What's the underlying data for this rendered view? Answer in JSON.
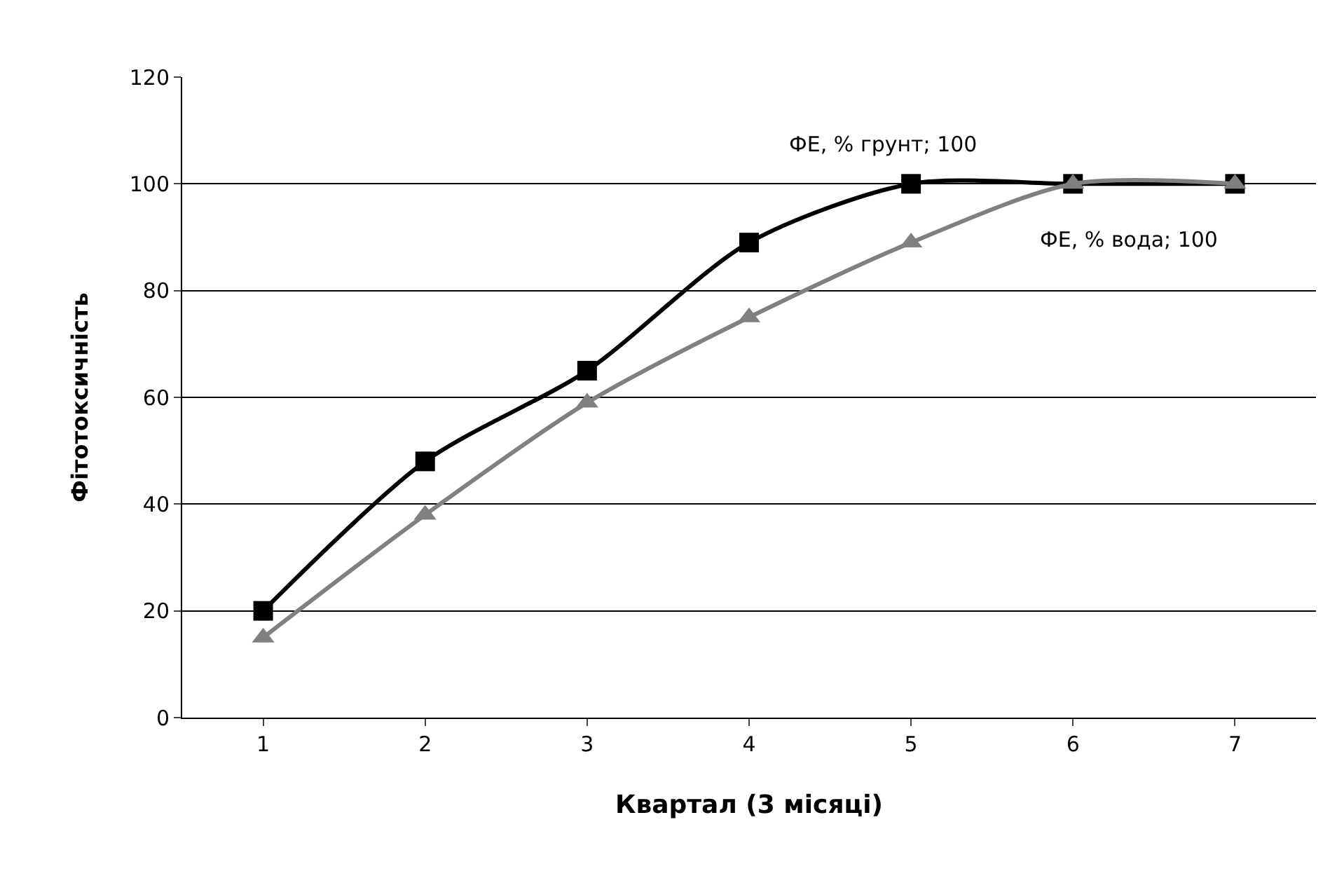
{
  "chart_data": {
    "type": "line",
    "xlabel": "Квартал (3 місяці)",
    "ylabel": "Фітотоксичність",
    "categories": [
      "1",
      "2",
      "3",
      "4",
      "5",
      "6",
      "7"
    ],
    "series": [
      {
        "color": "#000000",
        "marker": "square",
        "values": [
          20,
          48,
          65,
          89,
          100,
          100,
          100
        ]
      },
      {
        "color": "#808080",
        "marker": "triangle",
        "values": [
          15,
          38,
          59,
          75,
          89,
          100,
          100
        ]
      }
    ],
    "annotations": [
      {
        "text": "ФЕ, % грунт; 100",
        "x": "5",
        "y": 100
      },
      {
        "text": "ФЕ, % вода; 100",
        "x": "6",
        "y": 100
      }
    ],
    "ylim": [
      0,
      120
    ],
    "yticks": [
      0,
      20,
      40,
      60,
      80,
      100,
      120
    ],
    "grid": "y",
    "line_style": "solid"
  }
}
